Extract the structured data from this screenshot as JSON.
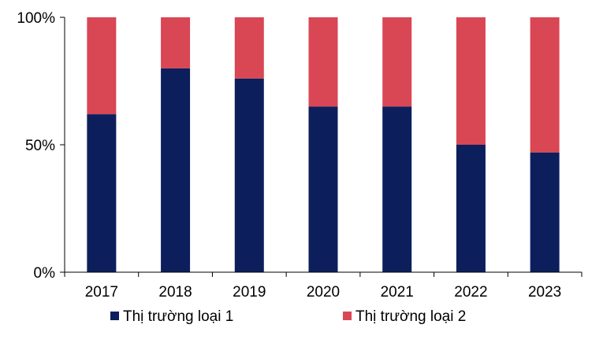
{
  "chart_data": {
    "type": "bar",
    "stacked": true,
    "percent": true,
    "categories": [
      "2017",
      "2018",
      "2019",
      "2020",
      "2021",
      "2022",
      "2023"
    ],
    "series": [
      {
        "name": "Thị trường loại 1",
        "color": "#0c1f5c",
        "values": [
          62,
          80,
          76,
          65,
          65,
          50,
          47
        ]
      },
      {
        "name": "Thị trường loại 2",
        "color": "#d94654",
        "values": [
          38,
          20,
          24,
          35,
          35,
          50,
          53
        ]
      }
    ],
    "ylim": [
      0,
      100
    ],
    "yticks": [
      0,
      50,
      100
    ],
    "ytick_labels": [
      "0%",
      "50%",
      "100%"
    ],
    "title": "",
    "xlabel": "",
    "ylabel": "",
    "grid": false,
    "legend_position": "bottom"
  }
}
